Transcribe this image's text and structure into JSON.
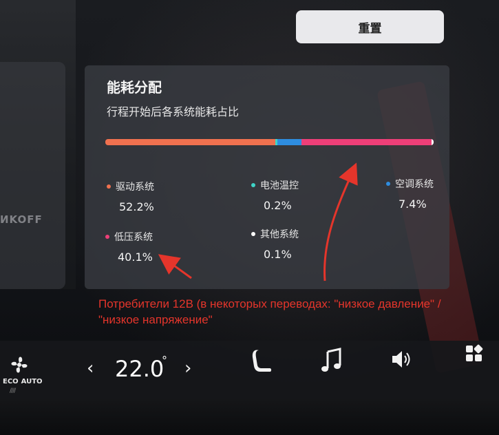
{
  "header": {
    "reset_label": "重置"
  },
  "background_card": {
    "text": "ИKOFF"
  },
  "energy_panel": {
    "title": "能耗分配",
    "subtitle": "行程开始后各系统能耗占比",
    "bar_segments": [
      {
        "name": "驱动系统",
        "fraction": 0.522,
        "color": "#f0714f"
      },
      {
        "name": "电池温控",
        "fraction": 0.002,
        "color": "#3fd4c7"
      },
      {
        "name": "空调系统",
        "fraction": 0.074,
        "color": "#2e8de0"
      },
      {
        "name": "低压系统",
        "fraction": 0.401,
        "color": "#ee3f78"
      },
      {
        "name": "其他系统",
        "fraction": 0.001,
        "color": "#ffffff"
      }
    ],
    "legend": [
      {
        "label": "驱动系统",
        "value": "52.2%",
        "color": "#f0714f"
      },
      {
        "label": "电池温控",
        "value": "0.2%",
        "color": "#3fd4c7"
      },
      {
        "label": "空调系统",
        "value": "7.4%",
        "color": "#2e8de0"
      },
      {
        "label": "低压系统",
        "value": "40.1%",
        "color": "#ee3f78"
      },
      {
        "label": "其他系统",
        "value": "0.1%",
        "color": "#ffffff"
      }
    ]
  },
  "annotation": {
    "text": "Потребители 12В (в некоторых переводах: \"низкое давление\" / \"низкое напряжение\"",
    "color": "#e5352b"
  },
  "climate_bar": {
    "mode_eco": "ECO",
    "mode_auto": "AUTO",
    "fan_level": "////",
    "temperature": "22.0",
    "temperature_unit": "°",
    "prev_symbol": "‹",
    "next_symbol": "›",
    "icons": [
      "fan-icon",
      "seat-heat-icon",
      "music-icon",
      "volume-icon",
      "apps-grid-icon"
    ]
  }
}
